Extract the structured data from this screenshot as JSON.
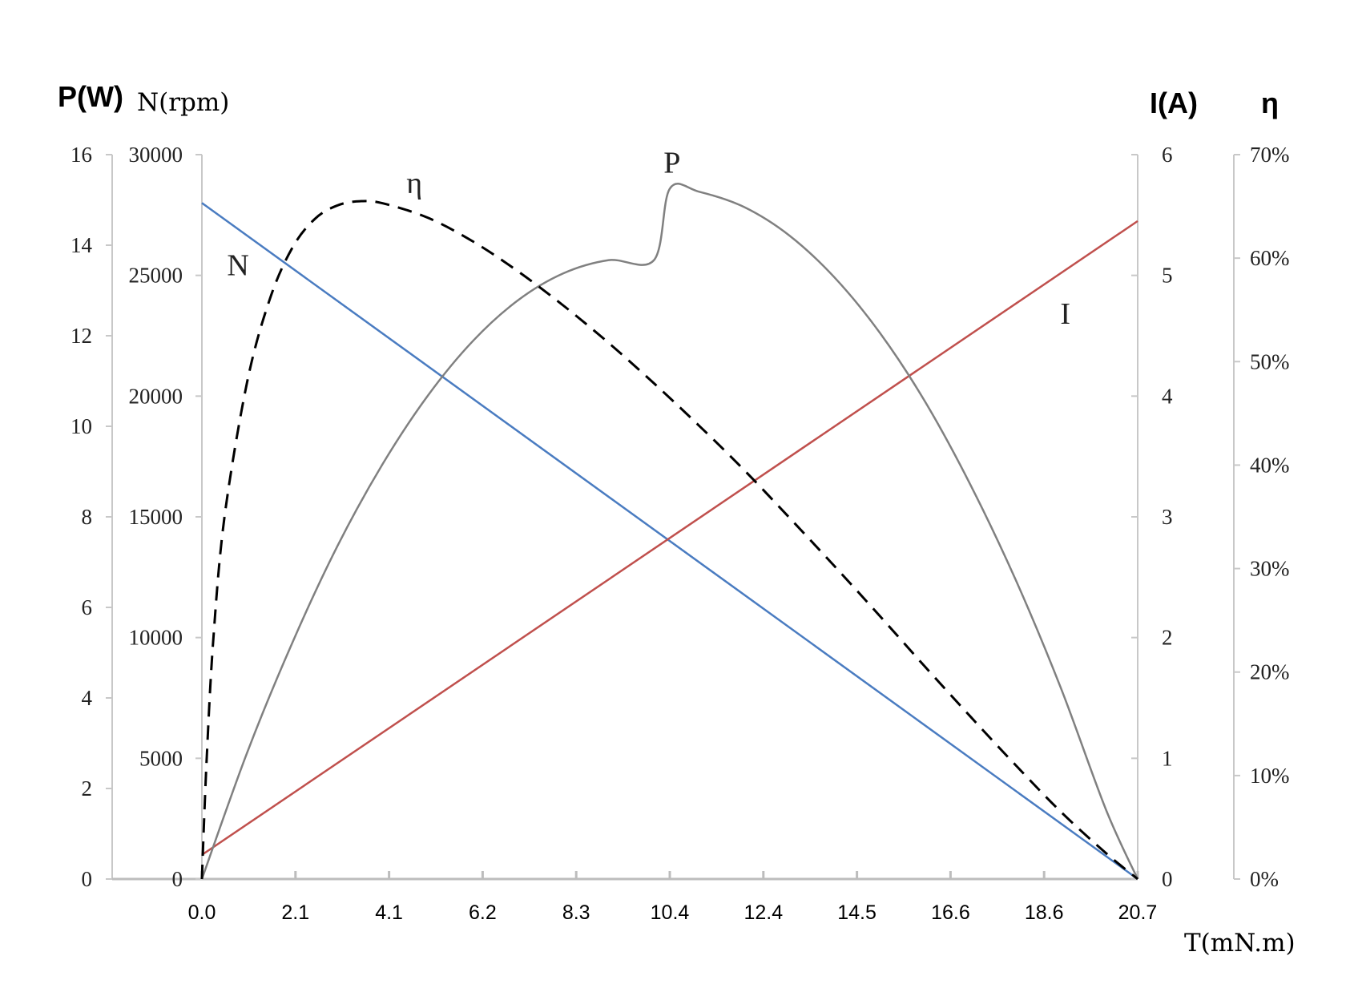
{
  "chart_data": {
    "type": "line",
    "xlabel": "T(mN.m)",
    "x_ticks": [
      "0.0",
      "2.1",
      "4.1",
      "6.2",
      "8.3",
      "10.4",
      "12.4",
      "14.5",
      "16.6",
      "18.6",
      "20.7"
    ],
    "xlim": [
      0,
      20.7
    ],
    "axes": {
      "power": {
        "title": "P(W)",
        "range": [
          0,
          16
        ],
        "ticks": [
          "0",
          "2",
          "4",
          "6",
          "8",
          "10",
          "12",
          "14",
          "16"
        ]
      },
      "speed": {
        "title": "N(rpm)",
        "range": [
          0,
          30000
        ],
        "ticks": [
          "0",
          "5000",
          "10000",
          "15000",
          "20000",
          "25000",
          "30000"
        ]
      },
      "current": {
        "title": "I(A)",
        "range": [
          0,
          6
        ],
        "ticks": [
          "0",
          "1",
          "2",
          "3",
          "4",
          "5",
          "6"
        ]
      },
      "efficiency": {
        "title": "η",
        "range": [
          0,
          70
        ],
        "ticks": [
          "0%",
          "10%",
          "20%",
          "30%",
          "40%",
          "50%",
          "60%",
          "70%"
        ]
      }
    },
    "series": [
      {
        "name": "N",
        "axis": "speed",
        "color": "#4a7cc1",
        "style": "solid",
        "x": [
          0,
          20.7
        ],
        "values": [
          28000,
          0
        ],
        "label_at": [
          0.8,
          25000
        ]
      },
      {
        "name": "I",
        "axis": "current",
        "color": "#c0504d",
        "style": "solid",
        "x": [
          0,
          20.7
        ],
        "values": [
          0.2,
          5.45
        ],
        "label_at": [
          19.1,
          4.6
        ]
      },
      {
        "name": "P",
        "axis": "power",
        "color": "#808080",
        "style": "solid",
        "x": [
          0,
          1,
          2,
          3,
          4,
          5,
          6,
          7,
          8,
          9,
          10,
          10.35,
          11,
          12,
          13,
          14,
          15,
          16,
          17,
          18,
          19,
          20,
          20.7
        ],
        "values": [
          0,
          2.79,
          5.22,
          7.36,
          9.17,
          10.68,
          11.89,
          12.79,
          13.38,
          13.67,
          13.67,
          15.25,
          15.18,
          14.84,
          14.21,
          13.28,
          12.06,
          10.54,
          8.71,
          6.61,
          4.22,
          1.53,
          0
        ],
        "label_at": [
          10.4,
          15.6
        ]
      },
      {
        "name": "η",
        "axis": "efficiency",
        "color": "#000000",
        "style": "dashed",
        "x": [
          0,
          0.1,
          0.25,
          0.5,
          1,
          1.5,
          2,
          2.5,
          3,
          3.5,
          4,
          5,
          6,
          7,
          8,
          9,
          10,
          11,
          12,
          13,
          14,
          15,
          16,
          17,
          18,
          19,
          20,
          20.7
        ],
        "values": [
          0,
          11,
          23,
          35,
          48,
          56,
          61,
          63.8,
          65.1,
          65.5,
          65.3,
          63.9,
          61.6,
          58.7,
          55.4,
          51.8,
          47.9,
          43.8,
          39.5,
          34.9,
          30.2,
          25.4,
          20.5,
          15.7,
          11,
          6.5,
          2.5,
          0
        ],
        "label_at": [
          4.7,
          66.3
        ]
      }
    ],
    "grid": false,
    "legend": "none"
  }
}
